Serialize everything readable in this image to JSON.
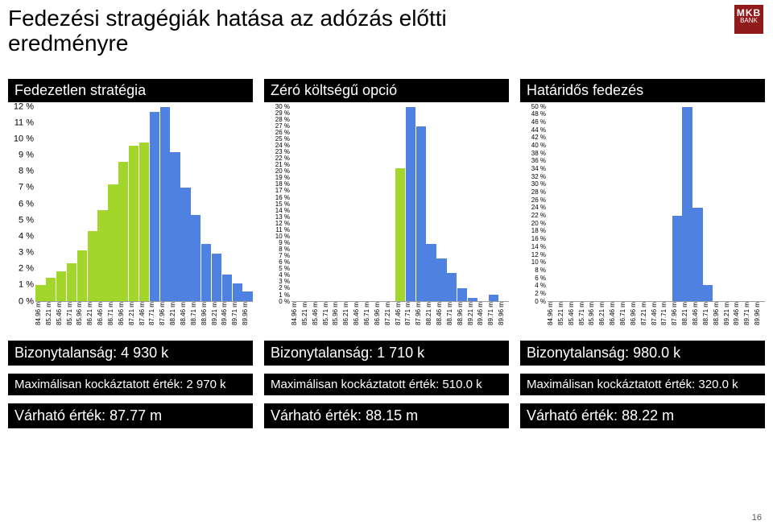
{
  "title_line1": "Fedezési stragégiák hatása az adózás előtti",
  "title_line2": "eredményre",
  "logo_top": "MKB",
  "logo_bottom": "BANK",
  "page_number": "16",
  "x_labels": [
    "84.96 m",
    "85.21 m",
    "85.46 m",
    "85.71 m",
    "85.96 m",
    "86.21 m",
    "86.46 m",
    "86.71 m",
    "86.96 m",
    "87.21 m",
    "87.46 m",
    "87.71 m",
    "87.96 m",
    "88.21 m",
    "88.46 m",
    "88.71 m",
    "88.96 m",
    "89.21 m",
    "89.46 m",
    "89.71 m",
    "89.96 m"
  ],
  "columns": [
    {
      "header": "Fedezetlen stratégia",
      "ymax": 12,
      "ystep": 1,
      "yunit": " %",
      "y_fontsize": 11,
      "bars": [
        {
          "v": 1.0,
          "c": "#a2d62a"
        },
        {
          "v": 1.4,
          "c": "#a2d62a"
        },
        {
          "v": 1.8,
          "c": "#a2d62a"
        },
        {
          "v": 2.3,
          "c": "#a2d62a"
        },
        {
          "v": 3.1,
          "c": "#a2d62a"
        },
        {
          "v": 4.3,
          "c": "#a2d62a"
        },
        {
          "v": 5.6,
          "c": "#a2d62a"
        },
        {
          "v": 7.2,
          "c": "#a2d62a"
        },
        {
          "v": 8.6,
          "c": "#a2d62a"
        },
        {
          "v": 9.6,
          "c": "#a2d62a"
        },
        {
          "v": 9.8,
          "c": "#a2d62a"
        },
        {
          "v": 11.7,
          "c": "#4f81e1"
        },
        {
          "v": 12.0,
          "c": "#4f81e1"
        },
        {
          "v": 9.2,
          "c": "#4f81e1"
        },
        {
          "v": 7.0,
          "c": "#4f81e1"
        },
        {
          "v": 5.3,
          "c": "#4f81e1"
        },
        {
          "v": 3.5,
          "c": "#4f81e1"
        },
        {
          "v": 2.9,
          "c": "#4f81e1"
        },
        {
          "v": 1.6,
          "c": "#4f81e1"
        },
        {
          "v": 1.1,
          "c": "#4f81e1"
        },
        {
          "v": 0.6,
          "c": "#4f81e1"
        }
      ],
      "metrics": [
        {
          "label": "Bizonytalanság: 4 930 k",
          "big": true
        },
        {
          "label": "Maximálisan kockáztatott érték: 2 970 k",
          "big": false
        },
        {
          "label": "Várható érték: 87.77 m",
          "big": true
        }
      ]
    },
    {
      "header": "Zéró költségű opció",
      "ymax": 30,
      "ystep": 1,
      "yunit": " %",
      "y_fontsize": 8,
      "bars": [
        {
          "v": 0,
          "c": "#a2d62a"
        },
        {
          "v": 0,
          "c": "#a2d62a"
        },
        {
          "v": 0,
          "c": "#a2d62a"
        },
        {
          "v": 0,
          "c": "#a2d62a"
        },
        {
          "v": 0,
          "c": "#a2d62a"
        },
        {
          "v": 0,
          "c": "#a2d62a"
        },
        {
          "v": 0,
          "c": "#a2d62a"
        },
        {
          "v": 0,
          "c": "#a2d62a"
        },
        {
          "v": 0,
          "c": "#a2d62a"
        },
        {
          "v": 0,
          "c": "#a2d62a"
        },
        {
          "v": 20.5,
          "c": "#a2d62a"
        },
        {
          "v": 30,
          "c": "#4f81e1"
        },
        {
          "v": 27,
          "c": "#4f81e1"
        },
        {
          "v": 8.8,
          "c": "#4f81e1"
        },
        {
          "v": 6.5,
          "c": "#4f81e1"
        },
        {
          "v": 4.3,
          "c": "#4f81e1"
        },
        {
          "v": 2.0,
          "c": "#4f81e1"
        },
        {
          "v": 0.4,
          "c": "#4f81e1"
        },
        {
          "v": 0,
          "c": "#4f81e1"
        },
        {
          "v": 1.0,
          "c": "#4f81e1"
        },
        {
          "v": 0,
          "c": "#4f81e1"
        }
      ],
      "metrics": [
        {
          "label": "Bizonytalanság: 1 710 k",
          "big": true
        },
        {
          "label": "Maximálisan kockáztatott érték: 510.0 k",
          "big": false
        },
        {
          "label": "Várható érték: 88.15 m",
          "big": true
        }
      ]
    },
    {
      "header": "Határidős fedezés",
      "ymax": 50,
      "ystep": 2,
      "yunit": " %",
      "y_fontsize": 8,
      "bars": [
        {
          "v": 0,
          "c": "#a2d62a"
        },
        {
          "v": 0,
          "c": "#a2d62a"
        },
        {
          "v": 0,
          "c": "#a2d62a"
        },
        {
          "v": 0,
          "c": "#a2d62a"
        },
        {
          "v": 0,
          "c": "#a2d62a"
        },
        {
          "v": 0,
          "c": "#a2d62a"
        },
        {
          "v": 0,
          "c": "#a2d62a"
        },
        {
          "v": 0,
          "c": "#a2d62a"
        },
        {
          "v": 0,
          "c": "#a2d62a"
        },
        {
          "v": 0,
          "c": "#a2d62a"
        },
        {
          "v": 0,
          "c": "#a2d62a"
        },
        {
          "v": 0,
          "c": "#a2d62a"
        },
        {
          "v": 22,
          "c": "#4f81e1"
        },
        {
          "v": 50,
          "c": "#4f81e1"
        },
        {
          "v": 24,
          "c": "#4f81e1"
        },
        {
          "v": 4,
          "c": "#4f81e1"
        },
        {
          "v": 0,
          "c": "#4f81e1"
        },
        {
          "v": 0,
          "c": "#4f81e1"
        },
        {
          "v": 0,
          "c": "#4f81e1"
        },
        {
          "v": 0,
          "c": "#4f81e1"
        },
        {
          "v": 0,
          "c": "#4f81e1"
        }
      ],
      "metrics": [
        {
          "label": "Bizonytalanság: 980.0 k",
          "big": true
        },
        {
          "label": "Maximálisan kockáztatott érték: 320.0 k",
          "big": false
        },
        {
          "label": "Várható érték: 88.22 m",
          "big": true
        }
      ]
    }
  ]
}
